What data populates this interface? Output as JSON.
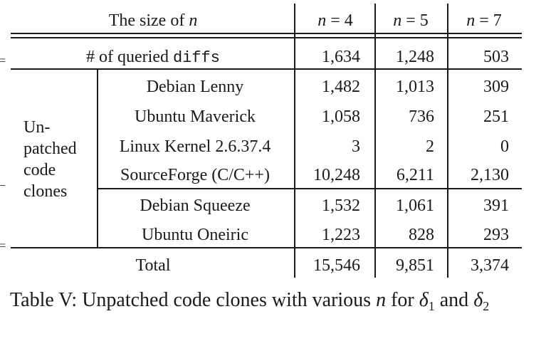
{
  "table": {
    "header": {
      "size_label": "The size of",
      "size_var": "n",
      "cols": [
        {
          "var": "n",
          "eq": "= 4"
        },
        {
          "var": "n",
          "eq": "= 5"
        },
        {
          "var": "n",
          "eq": "= 7"
        }
      ]
    },
    "queried_row": {
      "label_prefix": "# of queried",
      "label_code": "diffs",
      "values": [
        "1,634",
        "1,248",
        "503"
      ]
    },
    "group_label": [
      "Un-",
      "patched",
      "code",
      "clones"
    ],
    "rows": [
      {
        "name": "Debian Lenny",
        "values": [
          "1,482",
          "1,013",
          "309"
        ]
      },
      {
        "name": "Ubuntu Maverick",
        "values": [
          "1,058",
          "736",
          "251"
        ]
      },
      {
        "name": "Linux Kernel 2.6.37.4",
        "values": [
          "3",
          "2",
          "0"
        ]
      },
      {
        "name": "SourceForge (C/C++)",
        "values": [
          "10,248",
          "6,211",
          "2,130"
        ]
      },
      {
        "name": "Debian Squeeze",
        "values": [
          "1,532",
          "1,061",
          "391"
        ]
      },
      {
        "name": "Ubuntu Oneiric",
        "values": [
          "1,223",
          "828",
          "293"
        ]
      }
    ],
    "total_row": {
      "label": "Total",
      "values": [
        "15,546",
        "9,851",
        "3,374"
      ]
    }
  },
  "caption": {
    "prefix": "Table V: Unpatched code clones with various",
    "var_n": "n",
    "for_word": "for",
    "delta": "δ",
    "sub1": "1",
    "and_word": "and",
    "sub2": "2"
  }
}
